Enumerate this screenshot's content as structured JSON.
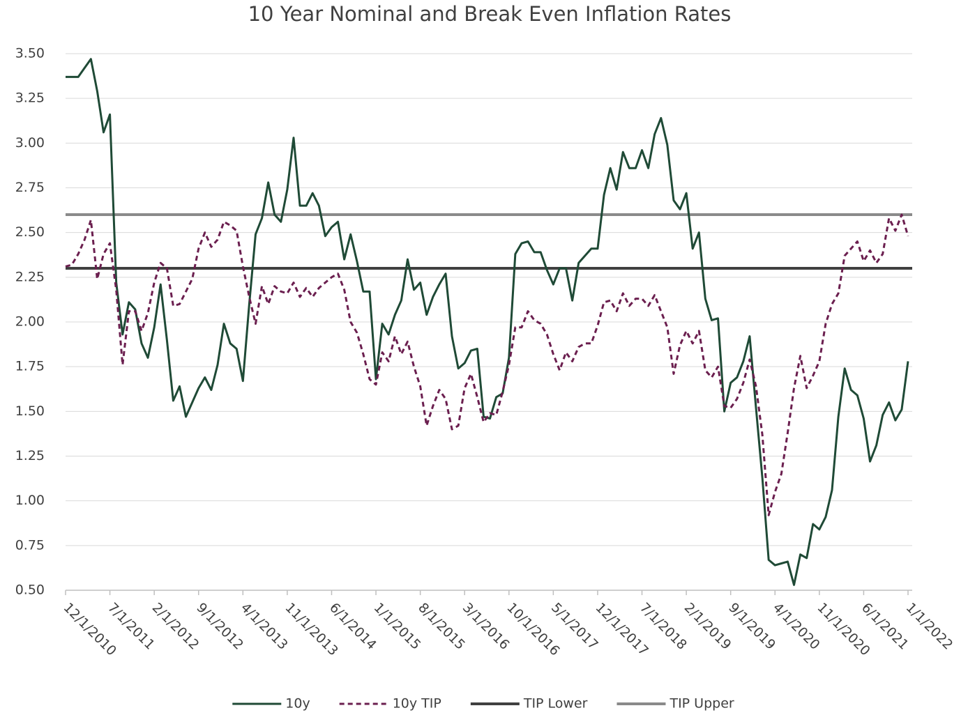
{
  "chart_data": {
    "type": "line",
    "title": "10 Year Nominal and Break Even Inflation Rates",
    "categories": [
      "12/1/2010",
      null,
      null,
      null,
      null,
      null,
      null,
      "7/1/2011",
      null,
      null,
      null,
      null,
      null,
      null,
      "2/1/2012",
      null,
      null,
      null,
      null,
      null,
      null,
      "9/1/2012",
      null,
      null,
      null,
      null,
      null,
      null,
      "4/1/2013",
      null,
      null,
      null,
      null,
      null,
      null,
      "11/1/2013",
      null,
      null,
      null,
      null,
      null,
      null,
      "6/1/2014",
      null,
      null,
      null,
      null,
      null,
      null,
      "1/1/2015",
      null,
      null,
      null,
      null,
      null,
      null,
      "8/1/2015",
      null,
      null,
      null,
      null,
      null,
      null,
      "3/1/2016",
      null,
      null,
      null,
      null,
      null,
      null,
      "10/1/2016",
      null,
      null,
      null,
      null,
      null,
      null,
      "5/1/2017",
      null,
      null,
      null,
      null,
      null,
      null,
      "12/1/2017",
      null,
      null,
      null,
      null,
      null,
      null,
      "7/1/2018",
      null,
      null,
      null,
      null,
      null,
      null,
      "2/1/2019",
      null,
      null,
      null,
      null,
      null,
      null,
      "9/1/2019",
      null,
      null,
      null,
      null,
      null,
      null,
      "4/1/2020",
      null,
      null,
      null,
      null,
      null,
      null,
      "11/1/2020",
      null,
      null,
      null,
      null,
      null,
      null,
      "6/1/2021",
      null,
      null,
      null,
      null,
      null,
      null,
      "1/1/2022"
    ],
    "series": [
      {
        "name": "10y",
        "color": "#1f4a36",
        "dashed": false,
        "values": [
          3.37,
          3.37,
          3.37,
          3.42,
          3.47,
          3.29,
          3.06,
          3.16,
          2.22,
          1.93,
          2.11,
          2.07,
          1.88,
          1.8,
          1.97,
          2.21,
          1.9,
          1.56,
          1.64,
          1.47,
          1.55,
          1.63,
          1.69,
          1.62,
          1.76,
          1.99,
          1.88,
          1.85,
          1.67,
          2.1,
          2.49,
          2.58,
          2.78,
          2.6,
          2.56,
          2.74,
          3.03,
          2.65,
          2.65,
          2.72,
          2.65,
          2.48,
          2.53,
          2.56,
          2.35,
          2.49,
          2.34,
          2.17,
          2.17,
          1.68,
          1.99,
          1.93,
          2.04,
          2.12,
          2.35,
          2.18,
          2.22,
          2.04,
          2.14,
          2.21,
          2.27,
          1.92,
          1.74,
          1.77,
          1.84,
          1.85,
          1.47,
          1.46,
          1.58,
          1.6,
          1.8,
          2.38,
          2.44,
          2.45,
          2.39,
          2.39,
          2.29,
          2.21,
          2.3,
          2.3,
          2.12,
          2.33,
          2.37,
          2.41,
          2.41,
          2.71,
          2.86,
          2.74,
          2.95,
          2.86,
          2.86,
          2.96,
          2.86,
          3.05,
          3.14,
          2.99,
          2.68,
          2.63,
          2.72,
          2.41,
          2.5,
          2.13,
          2.01,
          2.02,
          1.5,
          1.66,
          1.69,
          1.78,
          1.92,
          1.52,
          1.13,
          0.67,
          0.64,
          0.65,
          0.66,
          0.53,
          0.7,
          0.68,
          0.87,
          0.84,
          0.91,
          1.06,
          1.47,
          1.74,
          1.62,
          1.59,
          1.46,
          1.22,
          1.31,
          1.48,
          1.55,
          1.45,
          1.51,
          1.78
        ]
      },
      {
        "name": "10y TIP",
        "color": "#6b1f4f",
        "dashed": true,
        "values": [
          2.31,
          2.32,
          2.38,
          2.46,
          2.57,
          2.24,
          2.38,
          2.44,
          2.18,
          1.76,
          2.06,
          2.06,
          1.95,
          2.05,
          2.22,
          2.33,
          2.3,
          2.09,
          2.1,
          2.17,
          2.24,
          2.41,
          2.5,
          2.42,
          2.46,
          2.56,
          2.54,
          2.51,
          2.31,
          2.14,
          1.99,
          2.2,
          2.1,
          2.2,
          2.17,
          2.16,
          2.22,
          2.14,
          2.19,
          2.14,
          2.19,
          2.22,
          2.25,
          2.27,
          2.18,
          2.0,
          1.94,
          1.82,
          1.68,
          1.65,
          1.83,
          1.78,
          1.92,
          1.82,
          1.89,
          1.75,
          1.64,
          1.42,
          1.53,
          1.62,
          1.57,
          1.4,
          1.42,
          1.63,
          1.71,
          1.58,
          1.44,
          1.49,
          1.48,
          1.61,
          1.76,
          1.97,
          1.97,
          2.06,
          2.01,
          1.99,
          1.93,
          1.82,
          1.73,
          1.83,
          1.78,
          1.86,
          1.88,
          1.88,
          1.98,
          2.11,
          2.12,
          2.06,
          2.16,
          2.09,
          2.13,
          2.13,
          2.09,
          2.15,
          2.06,
          1.97,
          1.71,
          1.87,
          1.95,
          1.88,
          1.95,
          1.73,
          1.69,
          1.75,
          1.53,
          1.52,
          1.57,
          1.66,
          1.79,
          1.64,
          1.37,
          0.92,
          1.05,
          1.15,
          1.38,
          1.63,
          1.81,
          1.63,
          1.7,
          1.78,
          1.99,
          2.1,
          2.16,
          2.37,
          2.41,
          2.45,
          2.34,
          2.4,
          2.33,
          2.38,
          2.58,
          2.51,
          2.6,
          2.48
        ]
      }
    ],
    "lines": [
      {
        "name": "TIP Lower",
        "color": "#404040",
        "value": 2.3
      },
      {
        "name": "TIP Upper",
        "color": "#8a8a8a",
        "value": 2.6
      }
    ],
    "ylim": [
      0.5,
      3.5
    ],
    "yticks": [
      {
        "value": 0.5,
        "label": "0.50"
      },
      {
        "value": 0.75,
        "label": "0.75"
      },
      {
        "value": 1,
        "label": "1.00"
      },
      {
        "value": 1.25,
        "label": "1.25"
      },
      {
        "value": 1.5,
        "label": "1.50"
      },
      {
        "value": 1.75,
        "label": "1.75"
      },
      {
        "value": 2,
        "label": "2.00"
      },
      {
        "value": 2.25,
        "label": "2.25"
      },
      {
        "value": 2.5,
        "label": "2.50"
      },
      {
        "value": 2.75,
        "label": "2.75"
      },
      {
        "value": 3,
        "label": "3.00"
      },
      {
        "value": 3.25,
        "label": "3.25"
      },
      {
        "value": 3.5,
        "label": "3.50"
      }
    ],
    "grid": true,
    "legend": "bottom"
  }
}
